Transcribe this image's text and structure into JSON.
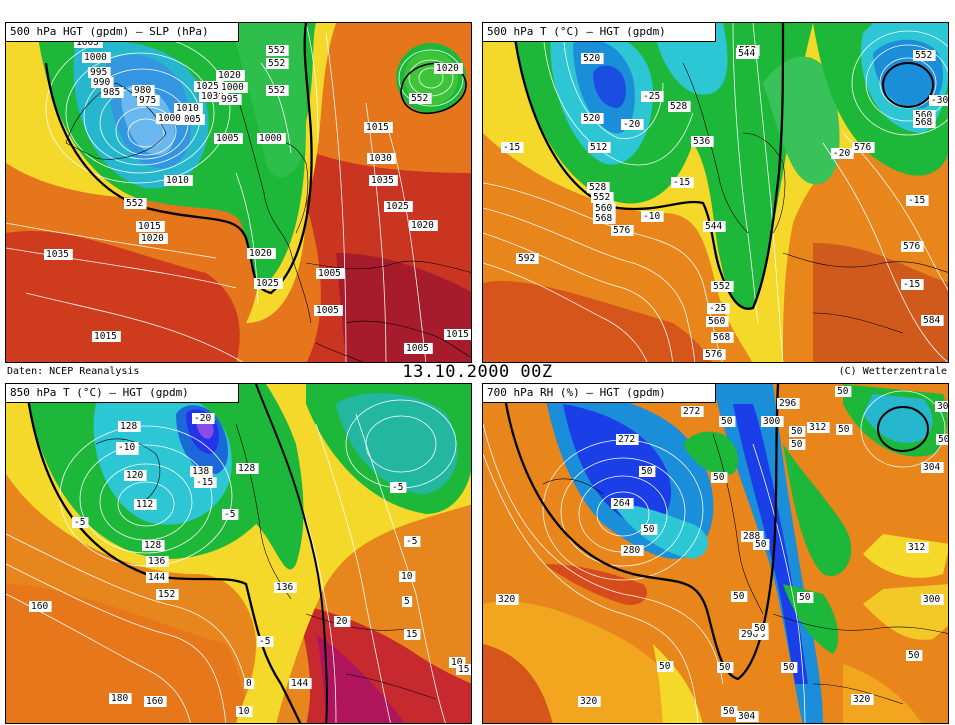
{
  "header": {
    "date": "13.10.2000 00Z",
    "source": "Daten: NCEP Reanalysis",
    "copyright": "(C) Wetterzentrale"
  },
  "panels": [
    {
      "id": "p1",
      "title": "500 hPa HGT (gpdm) — SLP (hPa)",
      "labels": [
        "1005",
        "1000",
        "995",
        "990",
        "985",
        "980",
        "975",
        "1020",
        "1025",
        "1030",
        "1000",
        "995",
        "1010",
        "1005",
        "1000",
        "1005",
        "1000",
        "1010",
        "552",
        "1015",
        "1020",
        "1035",
        "1015",
        "1020",
        "1025",
        "1005",
        "1005",
        "1005",
        "1015",
        "1015",
        "1030",
        "1035",
        "1025",
        "1020",
        "1020",
        "552",
        "552",
        "552",
        "552"
      ]
    },
    {
      "id": "p2",
      "title": "500 hPa T (°C) — HGT (gpdm)",
      "labels": [
        "520",
        "520",
        "-25",
        "528",
        "536",
        "-20",
        "-15",
        "512",
        "528",
        "-15",
        "552",
        "-10",
        "560",
        "568",
        "576",
        "544",
        "592",
        "552",
        "-25",
        "560",
        "568",
        "576",
        "552",
        "544",
        "-30",
        "552",
        "560",
        "568",
        "-20",
        "576",
        "-15",
        "576",
        "584",
        "-15"
      ]
    },
    {
      "id": "p3",
      "title": "850 hPa T (°C) — HGT (gpdm)",
      "labels": [
        "-20",
        "128",
        "-10",
        "138",
        "128",
        "-15",
        "120",
        "-10",
        "112",
        "-5",
        "-5",
        "128",
        "136",
        "144",
        "152",
        "160",
        "136",
        "-5",
        "10",
        "15",
        "20",
        "144",
        "160",
        "180",
        "-5",
        "0",
        "5",
        "10",
        "15",
        "-5",
        "10"
      ]
    },
    {
      "id": "p4",
      "title": "700 hPa RH (%) — HGT (gpdm)",
      "labels": [
        "272",
        "272",
        "296",
        "300",
        "312",
        "300",
        "264",
        "280",
        "288",
        "296",
        "296",
        "304",
        "320",
        "320",
        "320",
        "312",
        "50",
        "50",
        "50",
        "50",
        "50",
        "50",
        "50",
        "50",
        "50",
        "50",
        "50",
        "50",
        "50",
        "50",
        "50",
        "50",
        "50",
        "300",
        "304",
        "50"
      ]
    }
  ],
  "colors": {
    "bg_warm_red": "#c8241e",
    "orange": "#e87a18",
    "light_orange": "#f2a51f",
    "yellow": "#f5e02a",
    "light_green": "#5dcf3a",
    "green": "#1db83a",
    "cyan": "#25c2d8",
    "blue": "#1b74d4",
    "deep_blue": "#1a3ee8",
    "violet": "#9a49f0",
    "magenta": "#c6186a",
    "white_contour": "#ffffff",
    "black": "#000000"
  }
}
